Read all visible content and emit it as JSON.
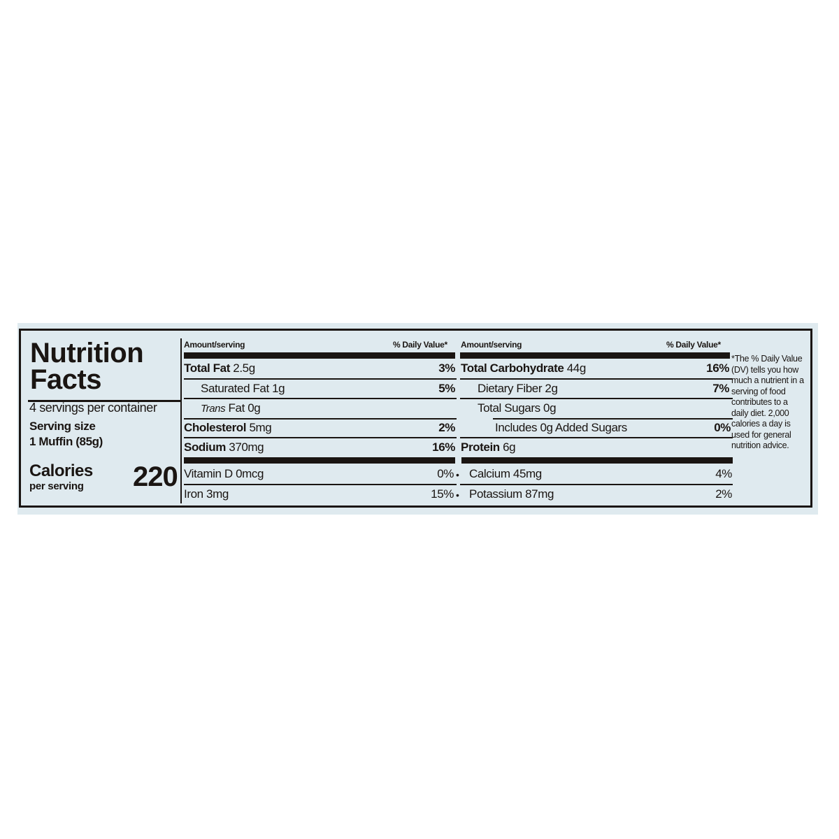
{
  "title_line1": "Nutrition",
  "title_line2": "Facts",
  "servings_per_container": "4 servings per container",
  "serving_size_label": "Serving size",
  "serving_size_value": "1 Muffin  (85g)",
  "calories_label": "Calories",
  "calories_sub": "per serving",
  "calories_value": "220",
  "header_amount": "Amount/serving",
  "header_dv": "% Daily Value*",
  "left_rows": [
    {
      "bold": "Total Fat",
      "amount": " 2.5g",
      "dv": "3%"
    },
    {
      "label": "Saturated Fat 1g",
      "dv": "5%"
    },
    {
      "italic": "Trans",
      "label": " Fat 0g",
      "dv": ""
    },
    {
      "bold": "Cholesterol",
      "amount": " 5mg",
      "dv": "2%"
    },
    {
      "bold": "Sodium",
      "amount": " 370mg",
      "dv": "16%"
    }
  ],
  "right_rows": [
    {
      "bold": "Total Carbohydrate",
      "amount": " 44g",
      "dv": "16%"
    },
    {
      "label": "Dietary Fiber 2g",
      "dv": "7%"
    },
    {
      "label": "Total Sugars 0g",
      "dv": ""
    },
    {
      "label": "Includes 0g Added Sugars",
      "dv": "0%"
    },
    {
      "bold": "Protein",
      "amount": " 6g",
      "dv": ""
    }
  ],
  "vitamins": [
    {
      "label": "Vitamin D 0mcg",
      "dv": "0%"
    },
    {
      "label": "Calcium 45mg",
      "dv": "4%"
    },
    {
      "label": "Iron 3mg",
      "dv": "15%"
    },
    {
      "label": "Potassium 87mg",
      "dv": "2%"
    }
  ],
  "bullet": "•",
  "footnote": "*The % Daily Value (DV) tells you how much a nutrient in a serving of food contributes to a daily diet. 2,000 calories a day is used for general nutrition advice.",
  "colors": {
    "label_bg": "#dfeaef",
    "ink": "#1a1512"
  }
}
